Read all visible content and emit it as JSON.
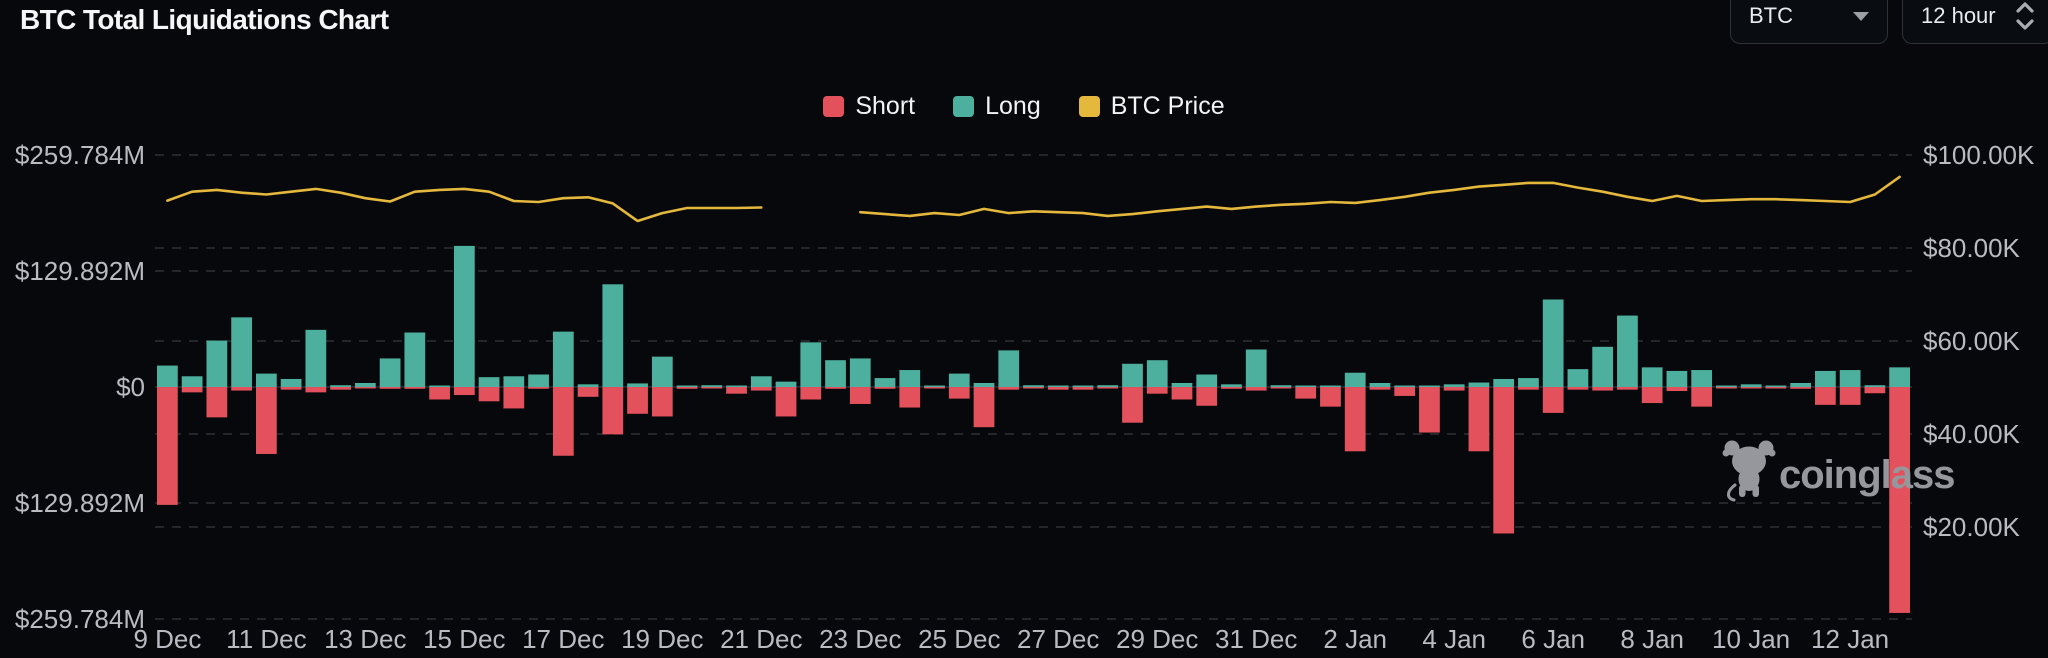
{
  "header": {
    "title": "BTC Total Liquidations Chart"
  },
  "controls": {
    "coin": {
      "value": "BTC"
    },
    "interval": {
      "value": "12 hour"
    }
  },
  "legend": {
    "items": [
      {
        "label": "Short",
        "color": "#e3525c"
      },
      {
        "label": "Long",
        "color": "#4db09e"
      },
      {
        "label": "BTC Price",
        "color": "#e4b73d"
      }
    ]
  },
  "watermark": {
    "text": "coinglass"
  },
  "chart_data": {
    "type": "bar",
    "title": "BTC Total Liquidations Chart",
    "interval": "12 hour",
    "bars_count": 71,
    "x_range": [
      "9 Dec",
      "13 Jan"
    ],
    "left_axis": {
      "labels": [
        "$259.784M",
        "$129.892M",
        "$0",
        "$129.892M",
        "$259.784M"
      ],
      "max_musd": 259.784,
      "grid": "dashed"
    },
    "right_axis": {
      "labels": [
        "$100.00K",
        "$80.00K",
        "$60.00K",
        "$40.00K",
        "$20.00K"
      ],
      "max_kusd": 100,
      "min_kusd": 20,
      "grid": "dashed"
    },
    "x_ticks": [
      {
        "label": "9 Dec",
        "bar": 1
      },
      {
        "label": "11 Dec",
        "bar": 5
      },
      {
        "label": "13 Dec",
        "bar": 9
      },
      {
        "label": "15 Dec",
        "bar": 13
      },
      {
        "label": "17 Dec",
        "bar": 17
      },
      {
        "label": "19 Dec",
        "bar": 21
      },
      {
        "label": "21 Dec",
        "bar": 25
      },
      {
        "label": "23 Dec",
        "bar": 29
      },
      {
        "label": "25 Dec",
        "bar": 33
      },
      {
        "label": "27 Dec",
        "bar": 37
      },
      {
        "label": "29 Dec",
        "bar": 41
      },
      {
        "label": "31 Dec",
        "bar": 45
      },
      {
        "label": "2 Jan",
        "bar": 49
      },
      {
        "label": "4 Jan",
        "bar": 53
      },
      {
        "label": "6 Jan",
        "bar": 57
      },
      {
        "label": "8 Jan",
        "bar": 61
      },
      {
        "label": "10 Jan",
        "bar": 65
      },
      {
        "label": "12 Jan",
        "bar": 69
      }
    ],
    "series": [
      {
        "name": "Long",
        "type": "bar",
        "axis": "left",
        "direction": "up",
        "color": "#4db09e",
        "values_musd": [
          24,
          12,
          52,
          78,
          15,
          9,
          64,
          2,
          4.5,
          32,
          61,
          1,
          158,
          11,
          12,
          14,
          62,
          3,
          115,
          4,
          34,
          1,
          2,
          1,
          12,
          6,
          50,
          30,
          32,
          10,
          19,
          1.5,
          15,
          4.5,
          41,
          2,
          1,
          1,
          2,
          26,
          30,
          4.5,
          14,
          3,
          42,
          2,
          1,
          1,
          16,
          4.5,
          1,
          1,
          3,
          5,
          9,
          10,
          98,
          20,
          45,
          80,
          22,
          18,
          19,
          1,
          3,
          1,
          4.5,
          18,
          19,
          2,
          22
        ]
      },
      {
        "name": "Short",
        "type": "bar",
        "axis": "left",
        "direction": "down",
        "color": "#e3525c",
        "values_musd": [
          132,
          6,
          34,
          4,
          75,
          3,
          6,
          3,
          1,
          2,
          2,
          14,
          9,
          16,
          24,
          2,
          77,
          11,
          53,
          30,
          33,
          2,
          1,
          7.5,
          4,
          33,
          14,
          2,
          19,
          2,
          23,
          1.5,
          13,
          45,
          3,
          1,
          3,
          3,
          1.5,
          40,
          7.5,
          14,
          21,
          2,
          4,
          1,
          13,
          22,
          72,
          3,
          10,
          51,
          4,
          72,
          164,
          3,
          29,
          3,
          4,
          3,
          18,
          4.5,
          22,
          1,
          1,
          1,
          2,
          20,
          20,
          7,
          253
        ]
      },
      {
        "name": "BTC Price",
        "type": "line",
        "axis": "right",
        "color": "#e4b73d",
        "values_kusd": [
          90.2,
          92.1,
          92.5,
          91.9,
          91.5,
          92.1,
          92.7,
          91.9,
          90.7,
          90.0,
          92.1,
          92.5,
          92.7,
          92.1,
          90.1,
          89.9,
          90.7,
          90.9,
          89.6,
          85.8,
          87.5,
          88.6,
          88.6,
          88.6,
          88.7,
          null,
          null,
          null,
          87.7,
          87.3,
          86.9,
          87.5,
          87.1,
          88.4,
          87.5,
          87.9,
          87.7,
          87.5,
          86.9,
          87.3,
          87.9,
          88.4,
          88.9,
          88.4,
          88.9,
          89.3,
          89.5,
          89.9,
          89.7,
          90.3,
          91.0,
          91.9,
          92.5,
          93.2,
          93.6,
          94.0,
          94.0,
          93.0,
          92.1,
          91.0,
          90.1,
          91.2,
          90.1,
          90.3,
          90.5,
          90.5,
          90.3,
          90.1,
          89.9,
          91.5,
          95.3
        ]
      }
    ]
  }
}
